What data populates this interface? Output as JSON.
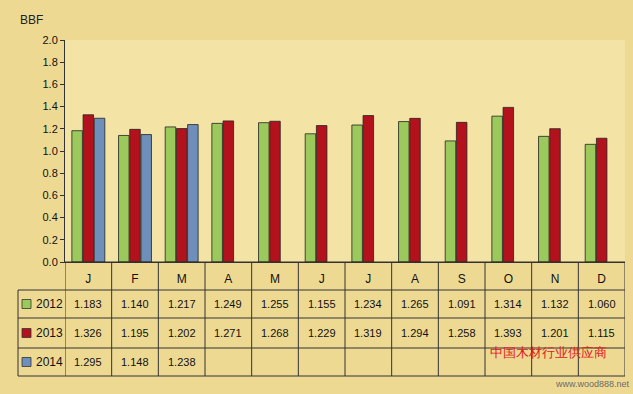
{
  "chart_data": {
    "type": "bar",
    "y_label": "BBF",
    "categories": [
      "J",
      "F",
      "M",
      "A",
      "M",
      "J",
      "J",
      "A",
      "S",
      "O",
      "N",
      "D"
    ],
    "series": [
      {
        "name": "2012",
        "color": "#9bc95b",
        "values": [
          1.183,
          1.14,
          1.217,
          1.249,
          1.255,
          1.155,
          1.234,
          1.265,
          1.091,
          1.314,
          1.132,
          1.06
        ],
        "value_labels": [
          "1.183",
          "1.140",
          "1.217",
          "1.249",
          "1.255",
          "1.155",
          "1.234",
          "1.265",
          "1.091",
          "1.314",
          "1.132",
          "1.060"
        ]
      },
      {
        "name": "2013",
        "color": "#b3121c",
        "values": [
          1.326,
          1.195,
          1.202,
          1.271,
          1.268,
          1.229,
          1.319,
          1.294,
          1.258,
          1.393,
          1.201,
          1.115
        ],
        "value_labels": [
          "1.326",
          "1.195",
          "1.202",
          "1.271",
          "1.268",
          "1.229",
          "1.319",
          "1.294",
          "1.258",
          "1.393",
          "1.201",
          "1.115"
        ]
      },
      {
        "name": "2014",
        "color": "#6f8fbb",
        "values": [
          1.295,
          1.148,
          1.238,
          null,
          null,
          null,
          null,
          null,
          null,
          null,
          null,
          null
        ],
        "value_labels": [
          "1.295",
          "1.148",
          "1.238",
          null,
          null,
          null,
          null,
          null,
          null,
          null,
          null,
          null
        ]
      }
    ],
    "ylim": [
      0,
      2
    ],
    "yticks": [
      {
        "value": 0,
        "label": "0.0"
      },
      {
        "value": 0.2,
        "label": "0.2"
      },
      {
        "value": 0.4,
        "label": "0.4"
      },
      {
        "value": 0.6,
        "label": "0.6"
      },
      {
        "value": 0.8,
        "label": "0.8"
      },
      {
        "value": 1,
        "label": "1.0"
      },
      {
        "value": 1.2,
        "label": "1.2"
      },
      {
        "value": 1.4,
        "label": "1.4"
      },
      {
        "value": 1.6,
        "label": "1.6"
      },
      {
        "value": 1.8,
        "label": "1.8"
      },
      {
        "value": 2,
        "label": "2.0"
      }
    ],
    "grid": false,
    "data_labels": true,
    "annotations": [
      {
        "text": "中国木材行业供应商"
      },
      {
        "text": "www.wood888.net"
      }
    ]
  }
}
